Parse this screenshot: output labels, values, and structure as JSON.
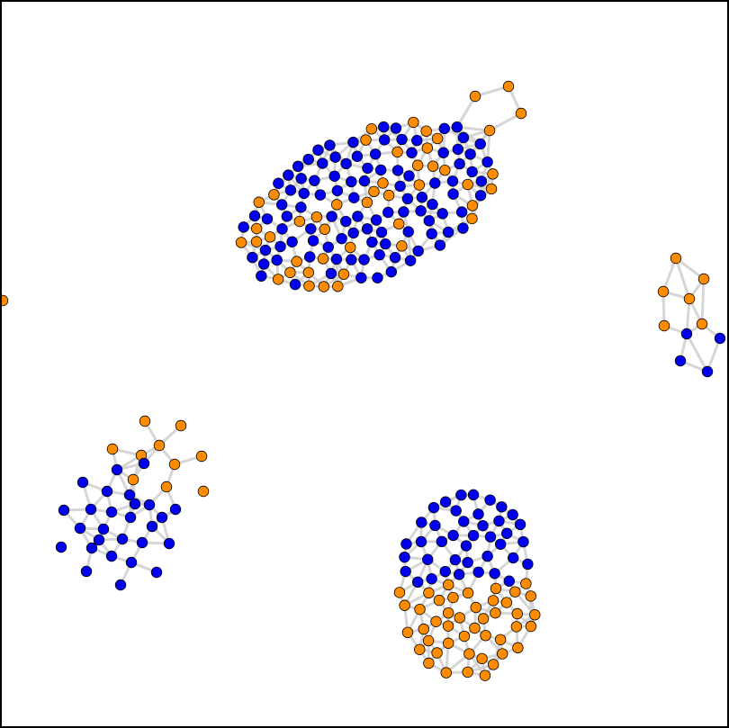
{
  "colors": {
    "blue": "#0000ee",
    "orange": "#ff8c00",
    "edge": "#d0d0d0",
    "frame": "#000000",
    "background": "#ffffff"
  },
  "components": [
    {
      "name": "top-cluster",
      "blue_nodes": 110,
      "orange_nodes": 46
    },
    {
      "name": "right-cluster",
      "blue_nodes": 4,
      "orange_nodes": 6
    },
    {
      "name": "bottom-left-cluster",
      "blue_nodes": 28,
      "orange_nodes": 9
    },
    {
      "name": "bottom-right-cluster",
      "blue_nodes": 40,
      "orange_nodes": 44
    },
    {
      "name": "isolated-node",
      "blue_nodes": 0,
      "orange_nodes": 1
    }
  ]
}
